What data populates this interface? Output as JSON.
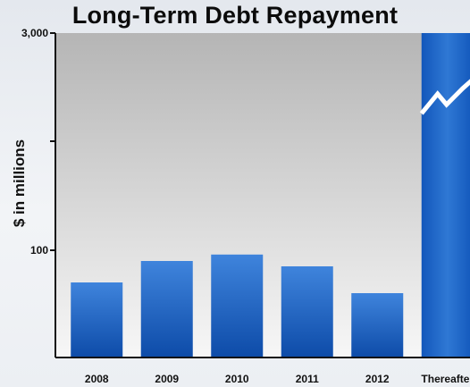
{
  "chart_data": {
    "type": "bar",
    "title": "Long-Term Debt Repayment",
    "xlabel": "",
    "ylabel": "$ in millions",
    "y_scale": "broken",
    "y_tick_labels": [
      "3,000",
      "100"
    ],
    "categories": [
      "2008",
      "2009",
      "2010",
      "2011",
      "2012",
      "Thereafter"
    ],
    "values": [
      70,
      90,
      96,
      85,
      60,
      3000
    ],
    "ylim": [
      0,
      3000
    ],
    "broken_bar": "Thereafter",
    "grid": false,
    "legend": "none",
    "colors": {
      "bar_top": "#3b7fd8",
      "bar_bottom": "#0e4fae",
      "plot_bg_top": "#b8b8b8",
      "plot_bg_bottom": "#f6f6f6",
      "axis": "#111111",
      "break_line": "#ffffff"
    }
  }
}
